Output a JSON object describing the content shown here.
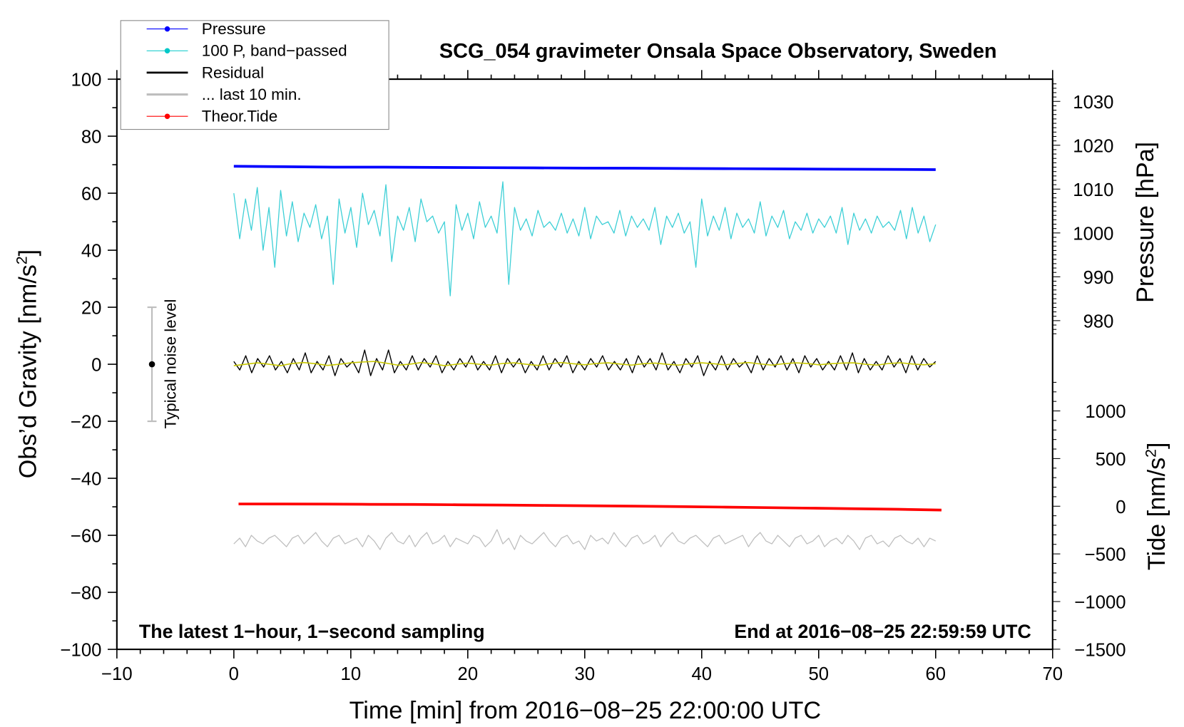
{
  "chart_data": {
    "type": "line",
    "title": "SCG_054 gravimeter Onsala Space Observatory, Sweden",
    "xlabel": "Time [min] from 2016−08−25 22:00:00 UTC",
    "ylabel_left": "Obs’d Gravity [nm/s",
    "ylabel_left_sup": "2",
    "ylabel_left_end": "]",
    "ylabel_right_pressure": "Pressure [hPa]",
    "ylabel_right_tide": "Tide [nm/s",
    "ylabel_right_tide_sup": "2",
    "ylabel_right_tide_end": "]",
    "xlim": [
      -10,
      70
    ],
    "ylim": [
      -100,
      100
    ],
    "pressure_ylim_ticks": [
      980,
      1030
    ],
    "tide_ylim": [
      -1500,
      1000
    ],
    "x_ticks": [
      "−10",
      "0",
      "10",
      "20",
      "30",
      "40",
      "50",
      "60",
      "70"
    ],
    "x_tick_values": [
      -10,
      0,
      10,
      20,
      30,
      40,
      50,
      60,
      70
    ],
    "y_ticks": [
      "100",
      "80",
      "60",
      "40",
      "20",
      "0",
      "−20",
      "−40",
      "−60",
      "−80",
      "−100"
    ],
    "y_tick_values": [
      100,
      80,
      60,
      40,
      20,
      0,
      -20,
      -40,
      -60,
      -80,
      -100
    ],
    "pressure_ticks": [
      "1030",
      "1020",
      "1010",
      "1000",
      "990",
      "980"
    ],
    "pressure_tick_values": [
      1030,
      1020,
      1010,
      1000,
      990,
      980
    ],
    "tide_ticks": [
      "1000",
      "500",
      "0",
      "−500",
      "−1000",
      "−1500"
    ],
    "tide_tick_values": [
      1000,
      500,
      0,
      -500,
      -1000,
      -1500
    ],
    "annotation_left": "The latest 1−hour, 1−second sampling",
    "annotation_right": "End at 2016−08−25 22:59:59 UTC",
    "noise_label": "Typical noise level",
    "noise_bar": {
      "x": -7,
      "center": 0,
      "low": -20,
      "high": 20
    },
    "legend": {
      "placement": "top-left",
      "items": [
        {
          "label": "Pressure",
          "color": "#0000ff",
          "marker": true,
          "width": 1
        },
        {
          "label": "100 P, band−passed",
          "color": "#00c8c8",
          "marker": true,
          "width": 1
        },
        {
          "label": "Residual",
          "color": "#000000",
          "marker": false,
          "width": 2.5
        },
        {
          "label": "... last 10 min.",
          "color": "#bebebe",
          "marker": false,
          "width": 3
        },
        {
          "label": "Theor.Tide",
          "color": "#ff0000",
          "marker": true,
          "width": 1
        }
      ]
    },
    "series": [
      {
        "name": "Pressure",
        "axis": "pressure",
        "color": "#0000ff",
        "x_range": [
          0,
          60
        ],
        "values": [
          1015.2,
          1015.1,
          1015.0,
          1015.0,
          1014.95,
          1014.9,
          1014.85,
          1014.8,
          1014.75,
          1014.7,
          1014.65,
          1014.6,
          1014.55,
          1014.5,
          1014.45
        ]
      },
      {
        "name": "100 P, band−passed",
        "axis": "left",
        "color": "#3ccfd6",
        "x_range": [
          0,
          60
        ],
        "values": [
          60,
          44,
          58,
          47,
          62,
          40,
          55,
          34,
          61,
          45,
          57,
          43,
          53,
          48,
          56,
          44,
          52,
          28,
          58,
          46,
          55,
          41,
          60,
          49,
          54,
          45,
          63,
          36,
          52,
          47,
          55,
          43,
          58,
          50,
          52,
          46,
          50,
          24,
          56,
          47,
          53,
          44,
          57,
          48,
          52,
          46,
          64,
          28,
          55,
          47,
          51,
          45,
          54,
          48,
          50,
          47,
          53,
          46,
          51,
          45,
          55,
          44,
          52,
          49,
          50,
          46,
          54,
          45,
          52,
          48,
          51,
          47,
          55,
          42,
          52,
          48,
          53,
          46,
          50,
          34,
          58,
          45,
          52,
          47,
          55,
          44,
          53,
          48,
          51,
          46,
          57,
          45,
          52,
          48,
          54,
          44,
          50,
          47,
          53,
          46,
          51,
          48,
          52,
          46,
          55,
          42,
          53,
          47,
          51,
          46,
          52,
          48,
          50,
          47,
          54,
          44,
          55,
          46,
          52,
          43,
          49
        ]
      },
      {
        "name": "Residual",
        "axis": "left",
        "color": "#000000",
        "x_range": [
          0,
          60
        ],
        "values": [
          1,
          -2,
          3,
          -3,
          2,
          -1,
          3,
          -2,
          1,
          -3,
          2,
          -2,
          4,
          -3,
          1,
          -2,
          3,
          -4,
          2,
          -1,
          1,
          -3,
          5,
          -4,
          2,
          -2,
          5,
          -3,
          1,
          -2,
          3,
          -2,
          2,
          -1,
          3,
          -3,
          1,
          -2,
          2,
          -1,
          3,
          -2,
          1,
          -2,
          3,
          -3,
          2,
          -1,
          2,
          -3,
          1,
          -2,
          3,
          -2,
          2,
          -1,
          3,
          -3,
          1,
          -2,
          2,
          -1,
          3,
          -2,
          1,
          -2,
          2,
          -3,
          3,
          -1,
          2,
          -2,
          4,
          -2,
          1,
          -3,
          2,
          -1,
          3,
          -4,
          1,
          -2,
          3,
          -2,
          2,
          -1,
          1,
          -3,
          3,
          -2,
          2,
          -1,
          3,
          -2,
          2,
          -3,
          3,
          -1,
          2,
          -2,
          1,
          -2,
          3,
          -2,
          4,
          -3,
          2,
          -2,
          1,
          -2,
          3,
          -1,
          2,
          -3,
          3,
          -2,
          2,
          -1,
          1
        ]
      },
      {
        "name": "Residual (smoothed)",
        "axis": "left",
        "color": "#c8c800",
        "x_range": [
          0,
          60
        ],
        "values": [
          -0.5,
          0,
          0.5,
          0,
          -0.5,
          0.3,
          0.6,
          0.2,
          -0.4,
          0,
          0.5,
          0.8,
          1,
          0.4,
          -0.3,
          0,
          0.6,
          0.2,
          -0.5,
          0,
          0.4,
          0,
          -0.3,
          0.3,
          0.5,
          0,
          -0.4,
          0.2,
          0.6,
          0.2,
          -0.2,
          0.3,
          0.5,
          0.1,
          -0.3,
          0.2,
          0.4,
          0,
          -0.3,
          0.2,
          0.5,
          0.2,
          -0.2,
          0.3,
          0.6,
          0.1,
          -0.3,
          0.2,
          0.5,
          0.3,
          -0.2,
          0.2,
          0.4,
          0.5,
          0,
          -0.3,
          0.3,
          0.5,
          0.1,
          -0.2,
          0.2
        ]
      },
      {
        "name": "... last 10 min.",
        "axis": "left",
        "color": "#bebebe",
        "x_range": [
          0,
          60
        ],
        "values": [
          -63,
          -61,
          -64,
          -60,
          -62,
          -63,
          -61,
          -60,
          -62,
          -64,
          -61,
          -60,
          -63,
          -61,
          -59,
          -62,
          -64,
          -61,
          -60,
          -63,
          -62,
          -61,
          -64,
          -60,
          -62,
          -65,
          -61,
          -59,
          -62,
          -63,
          -60,
          -64,
          -61,
          -59,
          -63,
          -62,
          -60,
          -64,
          -61,
          -62,
          -63,
          -60,
          -61,
          -64,
          -62,
          -58,
          -63,
          -61,
          -65,
          -60,
          -62,
          -63,
          -61,
          -59,
          -62,
          -64,
          -61,
          -60,
          -63,
          -62,
          -65,
          -60,
          -62,
          -61,
          -63,
          -59,
          -62,
          -64,
          -61,
          -60,
          -63,
          -62,
          -60,
          -64,
          -61,
          -59,
          -62,
          -63,
          -61,
          -60,
          -62,
          -64,
          -61,
          -60,
          -63,
          -62,
          -61,
          -60,
          -64,
          -61,
          -59,
          -62,
          -63,
          -60,
          -62,
          -64,
          -61,
          -60,
          -63,
          -62,
          -60,
          -64,
          -62,
          -61,
          -63,
          -60,
          -62,
          -65,
          -61,
          -60,
          -63,
          -62,
          -64,
          -61,
          -60,
          -62,
          -63,
          -61,
          -64,
          -61,
          -62
        ]
      },
      {
        "name": "Theor.Tide",
        "axis": "tide",
        "color": "#ff0000",
        "x_range": [
          0.4,
          60.5
        ],
        "values": [
          24,
          23,
          22,
          20,
          18,
          15,
          12,
          9,
          5,
          1,
          -4,
          -9,
          -14,
          -20,
          -26,
          -32,
          -40
        ]
      }
    ]
  }
}
